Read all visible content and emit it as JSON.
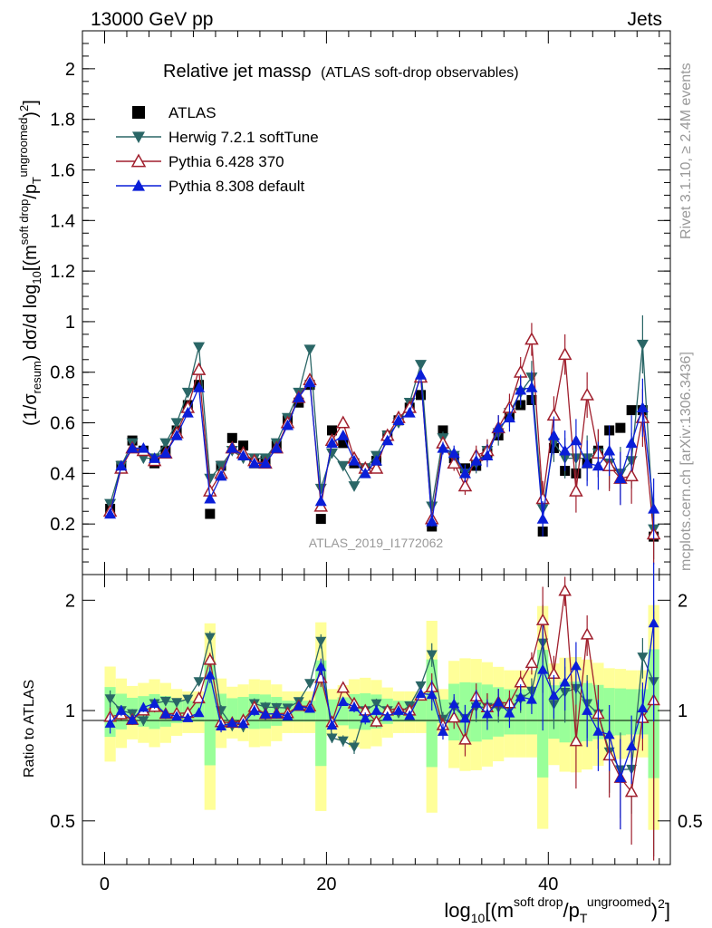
{
  "header": {
    "energy": "13000 GeV pp",
    "category": "Jets"
  },
  "side": {
    "rivet": "Rivet 3.1.10, ≥ 2.4M events",
    "mcplots": "mcplots.cern.ch [arXiv:1306.3436]"
  },
  "title": {
    "main": "Relative jet massρ",
    "sub": "(ATLAS soft-drop observables)"
  },
  "watermark": "ATLAS_2019_I1772062",
  "chart_data": {
    "type": "scatter",
    "xlim": [
      -2,
      51
    ],
    "ylim": [
      0,
      2.15
    ],
    "ratio_ylim": [
      0.38,
      2.35
    ],
    "xticks": [
      0,
      20,
      40
    ],
    "yticks": [
      0.2,
      0.4,
      0.6,
      0.8,
      1,
      1.2,
      1.4,
      1.6,
      1.8,
      2
    ],
    "ytick_labels": [
      "0.2",
      "0.4",
      "0.6",
      "0.8",
      "1",
      "1.2",
      "1.4",
      "1.6",
      "1.8",
      "2"
    ],
    "ratio_yticks": [
      0.5,
      1,
      2
    ],
    "ratio_ytick_labels": [
      "0.5",
      "1",
      "2"
    ],
    "xtick_labels": [
      "0",
      "20",
      "40"
    ],
    "x": [
      0.5,
      1.5,
      2.5,
      3.5,
      4.5,
      5.5,
      6.5,
      7.5,
      8.5,
      9.5,
      10.5,
      11.5,
      12.5,
      13.5,
      14.5,
      15.5,
      16.5,
      17.5,
      18.5,
      19.5,
      20.5,
      21.5,
      22.5,
      23.5,
      24.5,
      25.5,
      26.5,
      27.5,
      28.5,
      29.5,
      30.5,
      31.5,
      32.5,
      33.5,
      34.5,
      35.5,
      36.5,
      37.5,
      38.5,
      39.5,
      40.5,
      41.5,
      42.5,
      43.5,
      44.5,
      45.5,
      46.5,
      47.5,
      48.5,
      49.5
    ],
    "series": [
      {
        "name": "ATLAS",
        "color": "#000000",
        "marker": "square",
        "values": [
          0.26,
          0.43,
          0.53,
          0.49,
          0.44,
          0.49,
          0.57,
          0.67,
          0.75,
          0.24,
          0.43,
          0.54,
          0.51,
          0.44,
          0.45,
          0.51,
          0.61,
          0.68,
          0.75,
          0.22,
          0.57,
          0.52,
          0.44,
          0.42,
          0.45,
          0.55,
          0.61,
          0.66,
          0.71,
          0.19,
          0.57,
          0.46,
          0.42,
          0.43,
          0.48,
          0.55,
          0.63,
          0.67,
          0.69,
          0.17,
          0.5,
          0.41,
          0.4,
          0.44,
          0.49,
          0.57,
          0.58,
          0.65,
          0.65,
          0.15
        ]
      },
      {
        "name": "Herwig 7.2.1 softTune",
        "color": "#2a6666",
        "marker": "tri-down",
        "values": [
          0.28,
          0.43,
          0.52,
          0.46,
          0.46,
          0.52,
          0.6,
          0.72,
          0.9,
          0.38,
          0.43,
          0.49,
          0.46,
          0.46,
          0.46,
          0.52,
          0.62,
          0.72,
          0.89,
          0.34,
          0.48,
          0.43,
          0.35,
          0.42,
          0.47,
          0.55,
          0.6,
          0.68,
          0.83,
          0.27,
          0.54,
          0.47,
          0.4,
          0.44,
          0.49,
          0.56,
          0.64,
          0.72,
          0.78,
          0.26,
          0.52,
          0.46,
          0.46,
          0.46,
          0.48,
          0.44,
          0.4,
          0.45,
          0.91,
          0.18
        ]
      },
      {
        "name": "Pythia 6.428 370",
        "color": "#a01f2d",
        "marker": "tri-up-open",
        "values": [
          0.25,
          0.42,
          0.5,
          0.49,
          0.45,
          0.48,
          0.56,
          0.66,
          0.81,
          0.33,
          0.4,
          0.5,
          0.48,
          0.45,
          0.44,
          0.5,
          0.6,
          0.7,
          0.77,
          0.27,
          0.53,
          0.6,
          0.46,
          0.42,
          0.42,
          0.55,
          0.62,
          0.66,
          0.78,
          0.22,
          0.52,
          0.44,
          0.35,
          0.47,
          0.49,
          0.58,
          0.66,
          0.8,
          0.93,
          0.3,
          0.63,
          0.87,
          0.33,
          0.71,
          0.48,
          0.43,
          0.38,
          0.39,
          0.62,
          0.16
        ]
      },
      {
        "name": "Pythia 8.308 default",
        "color": "#0a1ed8",
        "marker": "tri-up",
        "values": [
          0.24,
          0.43,
          0.5,
          0.5,
          0.46,
          0.48,
          0.55,
          0.64,
          0.74,
          0.3,
          0.39,
          0.5,
          0.47,
          0.44,
          0.44,
          0.5,
          0.59,
          0.7,
          0.76,
          0.29,
          0.52,
          0.55,
          0.45,
          0.4,
          0.45,
          0.53,
          0.61,
          0.64,
          0.79,
          0.21,
          0.5,
          0.48,
          0.4,
          0.45,
          0.47,
          0.58,
          0.62,
          0.73,
          0.74,
          0.22,
          0.55,
          0.49,
          0.53,
          0.44,
          0.43,
          0.49,
          0.38,
          0.52,
          0.66,
          0.26
        ]
      }
    ],
    "xlabel": "log10[(m^soft drop/pT^ungroomed)^2]",
    "ylabel": "(1/σresum) dσ/d log10[(m^soft drop/pT^ungroomed)^2]",
    "ratio_ylabel": "Ratio to ATLAS",
    "grid": false,
    "legend": "top-left"
  }
}
